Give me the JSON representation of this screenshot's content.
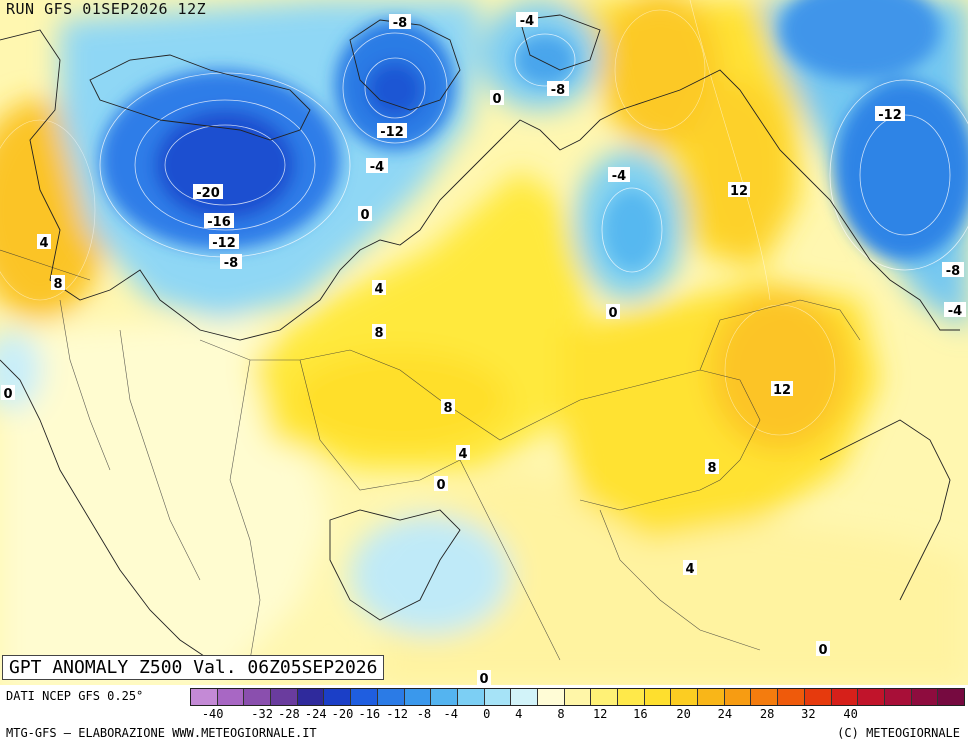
{
  "header": {
    "run_label": "RUN GFS 01SEP2026 12Z"
  },
  "map": {
    "title": "GPT ANOMALY Z500 Val. 06Z05SEP2026",
    "contour_labels": [
      "-8",
      "-4",
      "0",
      "-8",
      "-20",
      "-16",
      "-12",
      "-8",
      "-12",
      "-4",
      "0",
      "12",
      "8",
      "4",
      "-4",
      "12",
      "-12",
      "-8",
      "-4",
      "4",
      "8",
      "0",
      "8",
      "4",
      "0",
      "12",
      "8",
      "4",
      "0",
      "0",
      "0"
    ]
  },
  "legend": {
    "source": "DATI NCEP GFS 0.25°",
    "ticks": [
      "-40",
      "-32",
      "-28",
      "-24",
      "-20",
      "-16",
      "-12",
      "-8",
      "-4",
      "0",
      "4",
      "8",
      "12",
      "16",
      "20",
      "24",
      "28",
      "32",
      "40"
    ],
    "colors": [
      "#c48ad6",
      "#a867c4",
      "#8a4fae",
      "#6a3c9e",
      "#2f2a9c",
      "#1b3fc7",
      "#1f5ee0",
      "#2b7be6",
      "#3a98ec",
      "#54b4f0",
      "#7ccff4",
      "#a6e3f7",
      "#d2f3f9",
      "#fffcd6",
      "#fff6a8",
      "#fff176",
      "#ffe94a",
      "#fedf2e",
      "#fccd22",
      "#f9b618",
      "#f79c12",
      "#f47c0e",
      "#ef5a0b",
      "#e63a0d",
      "#d6201a",
      "#c1142b",
      "#a80f38",
      "#8e0c3e",
      "#760a40"
    ]
  },
  "footer": {
    "left": "MTG-GFS — ELABORAZIONE WWW.METEOGIORNALE.IT",
    "right": "(C) METEOGIORNALE"
  }
}
